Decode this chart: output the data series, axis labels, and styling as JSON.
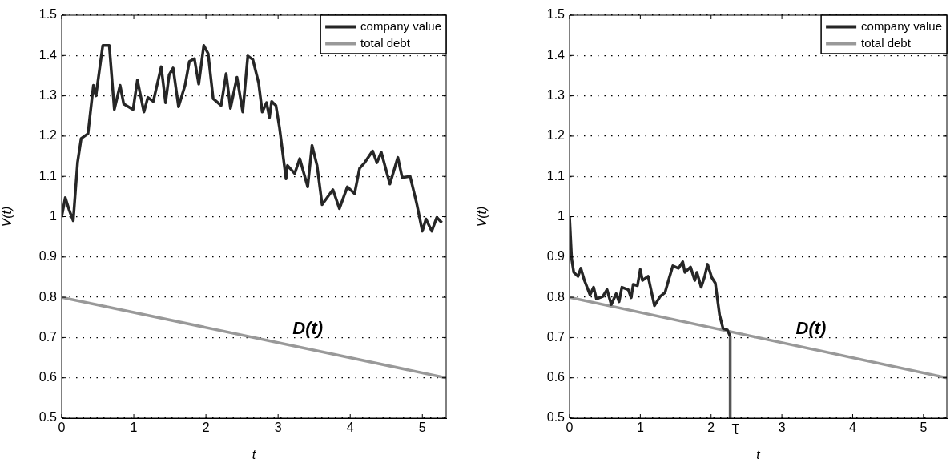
{
  "chart_data": [
    {
      "type": "line",
      "xlabel": "t",
      "ylabel": "V(t)",
      "xlim": [
        0,
        5.33
      ],
      "xticks": [
        0,
        1,
        2,
        3,
        4,
        5
      ],
      "ylim": [
        0.5,
        1.5
      ],
      "yticks": [
        0.5,
        0.6,
        0.7,
        0.8,
        0.9,
        1,
        1.1,
        1.2,
        1.3,
        1.4,
        1.5
      ],
      "grid": "y",
      "legend": "top right",
      "marker": "none",
      "line_style": "solid",
      "series": [
        {
          "name": "company value",
          "color": "#262626",
          "x": [
            0,
            0.05,
            0.107,
            0.16,
            0.22,
            0.27,
            0.365,
            0.44,
            0.475,
            0.57,
            0.66,
            0.73,
            0.81,
            0.86,
            0.99,
            1.05,
            1.14,
            1.195,
            1.27,
            1.38,
            1.44,
            1.49,
            1.545,
            1.62,
            1.71,
            1.77,
            1.84,
            1.9,
            1.97,
            2.03,
            2.1,
            2.21,
            2.28,
            2.34,
            2.43,
            2.51,
            2.58,
            2.65,
            2.73,
            2.78,
            2.84,
            2.88,
            2.91,
            2.97,
            3.02,
            3.11,
            3.13,
            3.23,
            3.3,
            3.41,
            3.47,
            3.54,
            3.61,
            3.76,
            3.85,
            3.96,
            4.06,
            4.13,
            4.2,
            4.31,
            4.37,
            4.43,
            4.55,
            4.66,
            4.72,
            4.83,
            4.92,
            5.0,
            5.05,
            5.13,
            5.2,
            5.27
          ],
          "values": [
            1.0,
            1.047,
            1.015,
            0.99,
            1.134,
            1.194,
            1.206,
            1.326,
            1.3,
            1.425,
            1.425,
            1.266,
            1.326,
            1.28,
            1.266,
            1.339,
            1.26,
            1.296,
            1.286,
            1.372,
            1.283,
            1.352,
            1.369,
            1.273,
            1.326,
            1.385,
            1.392,
            1.329,
            1.425,
            1.405,
            1.293,
            1.276,
            1.355,
            1.269,
            1.346,
            1.26,
            1.399,
            1.39,
            1.332,
            1.26,
            1.283,
            1.246,
            1.286,
            1.276,
            1.22,
            1.094,
            1.127,
            1.107,
            1.144,
            1.074,
            1.177,
            1.127,
            1.03,
            1.067,
            1.02,
            1.074,
            1.057,
            1.12,
            1.134,
            1.163,
            1.134,
            1.16,
            1.081,
            1.147,
            1.097,
            1.1,
            1.034,
            0.964,
            0.994,
            0.964,
            0.998,
            0.985
          ]
        },
        {
          "name": "total debt",
          "color": "#999999",
          "x": [
            0,
            5.33
          ],
          "values": [
            0.8,
            0.6
          ]
        }
      ],
      "annotations": [
        "D(t)"
      ]
    },
    {
      "type": "line",
      "xlabel": "t",
      "ylabel": "V(t)",
      "xlim": [
        0,
        5.33
      ],
      "xticks": [
        0,
        1,
        2,
        3,
        4,
        5
      ],
      "ylim": [
        0.5,
        1.5
      ],
      "yticks": [
        0.5,
        0.6,
        0.7,
        0.8,
        0.9,
        1,
        1.1,
        1.2,
        1.3,
        1.4,
        1.5
      ],
      "grid": "y",
      "legend": "top right",
      "marker": "none",
      "line_style": "solid",
      "series": [
        {
          "name": "company value",
          "color": "#262626",
          "x": [
            0,
            0.03,
            0.06,
            0.12,
            0.16,
            0.21,
            0.29,
            0.34,
            0.38,
            0.47,
            0.53,
            0.59,
            0.66,
            0.7,
            0.74,
            0.83,
            0.87,
            0.9,
            0.96,
            1.0,
            1.03,
            1.11,
            1.2,
            1.28,
            1.35,
            1.41,
            1.46,
            1.54,
            1.6,
            1.63,
            1.71,
            1.77,
            1.8,
            1.86,
            1.91,
            1.95,
            2.01,
            2.06,
            2.12,
            2.17,
            2.23,
            2.27
          ],
          "values": [
            1.0,
            0.895,
            0.862,
            0.852,
            0.872,
            0.842,
            0.806,
            0.825,
            0.796,
            0.802,
            0.819,
            0.782,
            0.809,
            0.789,
            0.825,
            0.819,
            0.799,
            0.832,
            0.829,
            0.869,
            0.842,
            0.852,
            0.779,
            0.802,
            0.812,
            0.849,
            0.878,
            0.872,
            0.888,
            0.862,
            0.875,
            0.842,
            0.862,
            0.825,
            0.852,
            0.882,
            0.849,
            0.835,
            0.756,
            0.722,
            0.719,
            0.703
          ]
        },
        {
          "name": "total debt",
          "color": "#999999",
          "x": [
            0,
            5.33
          ],
          "values": [
            0.8,
            0.6
          ]
        },
        {
          "color": "#555555",
          "x": [
            2.27,
            2.27
          ],
          "values": [
            0.5,
            0.703
          ]
        }
      ],
      "annotations": [
        "D(t)",
        {
          "text": "τ",
          "x": 2.27,
          "y": 0.5
        }
      ]
    }
  ]
}
